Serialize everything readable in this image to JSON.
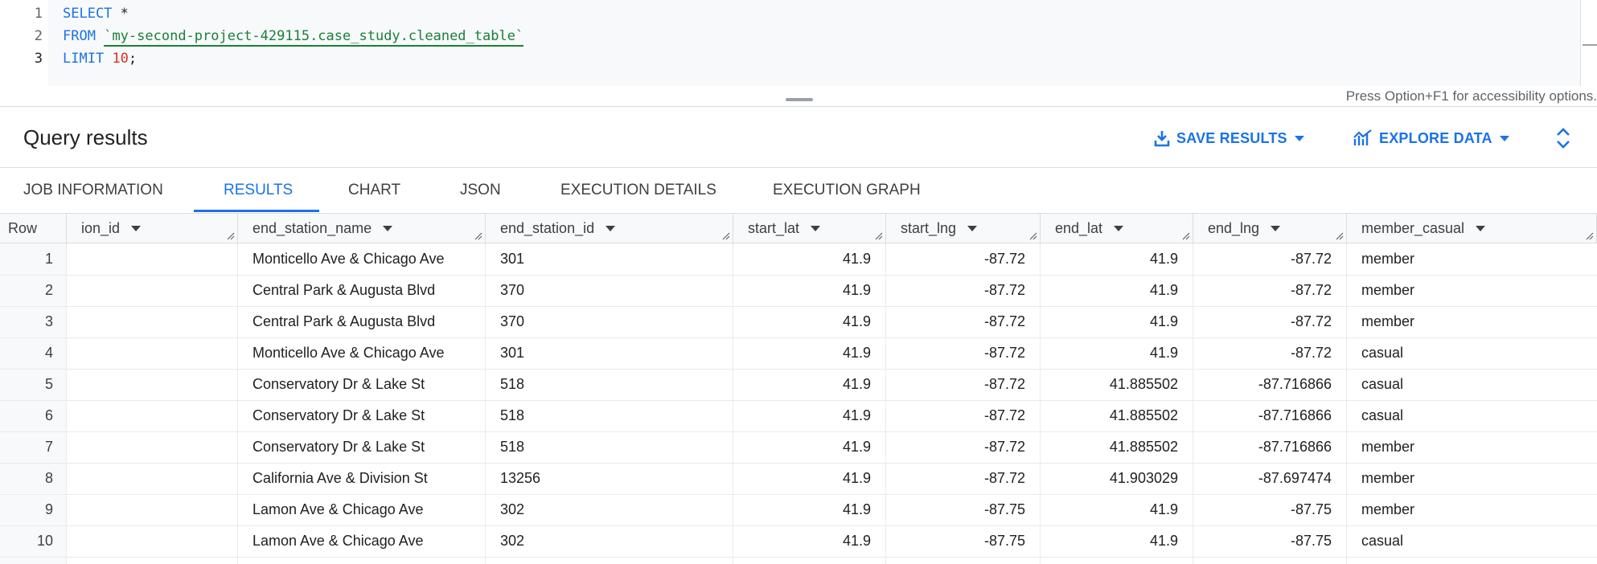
{
  "editor": {
    "line_numbers": [
      "1",
      "2",
      "3"
    ],
    "line1": {
      "kw": "SELECT",
      "rest": " *"
    },
    "line2": {
      "kw": "FROM",
      "table": "`my-second-project-429115.case_study.cleaned_table`"
    },
    "line3": {
      "kw": "LIMIT",
      "num": "10",
      "end": ";"
    },
    "a11y_hint": "Press Option+F1 for accessibility options."
  },
  "results": {
    "title": "Query results",
    "save_label": "SAVE RESULTS",
    "explore_label": "EXPLORE DATA"
  },
  "tabs": [
    "JOB INFORMATION",
    "RESULTS",
    "CHART",
    "JSON",
    "EXECUTION DETAILS",
    "EXECUTION GRAPH"
  ],
  "active_tab": "RESULTS",
  "table": {
    "headers": [
      "Row",
      "ion_id",
      "end_station_name",
      "end_station_id",
      "start_lat",
      "start_lng",
      "end_lat",
      "end_lng",
      "member_casual"
    ],
    "rows": [
      [
        "1",
        "",
        "Monticello Ave & Chicago Ave",
        "301",
        "41.9",
        "-87.72",
        "41.9",
        "-87.72",
        "member"
      ],
      [
        "2",
        "",
        "Central Park & Augusta Blvd",
        "370",
        "41.9",
        "-87.72",
        "41.9",
        "-87.72",
        "member"
      ],
      [
        "3",
        "",
        "Central Park & Augusta Blvd",
        "370",
        "41.9",
        "-87.72",
        "41.9",
        "-87.72",
        "member"
      ],
      [
        "4",
        "",
        "Monticello Ave & Chicago Ave",
        "301",
        "41.9",
        "-87.72",
        "41.9",
        "-87.72",
        "casual"
      ],
      [
        "5",
        "",
        "Conservatory Dr & Lake St",
        "518",
        "41.9",
        "-87.72",
        "41.885502",
        "-87.716866",
        "casual"
      ],
      [
        "6",
        "",
        "Conservatory Dr & Lake St",
        "518",
        "41.9",
        "-87.72",
        "41.885502",
        "-87.716866",
        "casual"
      ],
      [
        "7",
        "",
        "Conservatory Dr & Lake St",
        "518",
        "41.9",
        "-87.72",
        "41.885502",
        "-87.716866",
        "member"
      ],
      [
        "8",
        "",
        "California Ave & Division St",
        "13256",
        "41.9",
        "-87.72",
        "41.903029",
        "-87.697474",
        "member"
      ],
      [
        "9",
        "",
        "Lamon Ave & Chicago Ave",
        "302",
        "41.9",
        "-87.75",
        "41.9",
        "-87.75",
        "member"
      ],
      [
        "10",
        "",
        "Lamon Ave & Chicago Ave",
        "302",
        "41.9",
        "-87.75",
        "41.9",
        "-87.75",
        "casual"
      ]
    ]
  },
  "colors": {
    "accent": "#1a73e8",
    "keyword": "#1a73e8",
    "string": "#188038",
    "number": "#d93025"
  },
  "icons": [
    "download-icon",
    "caret-down-icon",
    "chart-icon",
    "expand-collapse-icon",
    "column-menu-caret-icon",
    "resize-grip-icon"
  ]
}
